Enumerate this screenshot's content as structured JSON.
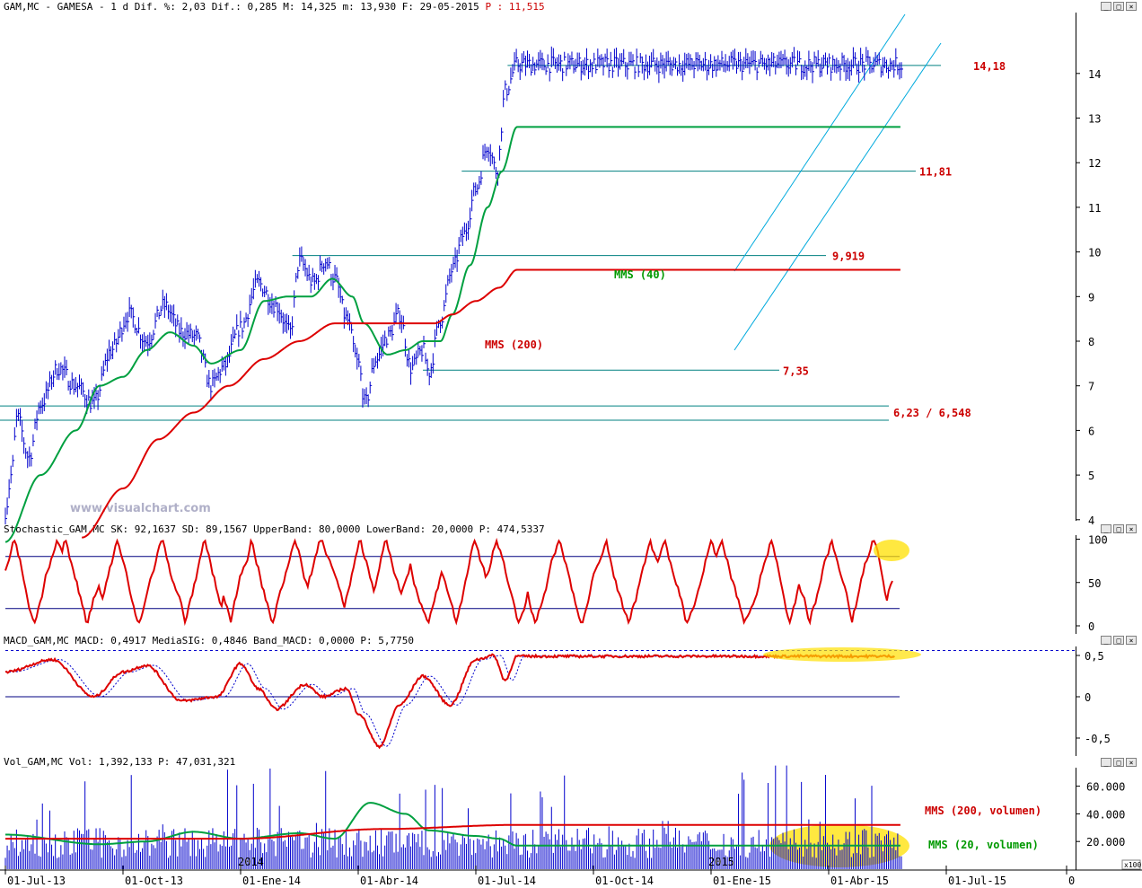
{
  "chart_data": [
    {
      "type": "line",
      "panel": "price",
      "header": "GAM,MC - GAMESA -  1 d Dif. %: 2,03 Dif.: 0,285 M: 14,325 m: 13,930 F: 29-05-2015",
      "header_p": "P : 11,515",
      "ylim": [
        3.5,
        14.8
      ],
      "yticks": [
        4,
        5,
        6,
        7,
        8,
        9,
        10,
        11,
        12,
        13,
        14
      ],
      "x_labels": [
        "01-Jul-13",
        "01-Oct-13",
        "01-Ene-14",
        "01-Abr-14",
        "01-Jul-14",
        "01-Oct-14",
        "01-Ene-15",
        "01-Abr-15",
        "01-Jul-15",
        "0"
      ],
      "year_marks": [
        "2014",
        "2015"
      ],
      "price_keypoints": [
        [
          0,
          4.2
        ],
        [
          0.05,
          5.0
        ],
        [
          0.1,
          6.3
        ],
        [
          0.2,
          5.4
        ],
        [
          0.3,
          6.6
        ],
        [
          0.45,
          7.4
        ],
        [
          0.6,
          7.0
        ],
        [
          0.75,
          6.6
        ],
        [
          0.9,
          7.8
        ],
        [
          1.05,
          8.6
        ],
        [
          1.2,
          8.0
        ],
        [
          1.35,
          8.8
        ],
        [
          1.5,
          8.2
        ],
        [
          1.62,
          8.1
        ],
        [
          1.75,
          7.0
        ],
        [
          1.85,
          7.4
        ],
        [
          2.0,
          8.3
        ],
        [
          2.15,
          9.3
        ],
        [
          2.3,
          8.8
        ],
        [
          2.42,
          8.2
        ],
        [
          2.5,
          9.8
        ],
        [
          2.62,
          9.3
        ],
        [
          2.72,
          9.8
        ],
        [
          2.8,
          9.4
        ],
        [
          2.9,
          8.5
        ],
        [
          3.0,
          7.5
        ],
        [
          3.06,
          6.6
        ],
        [
          3.15,
          7.6
        ],
        [
          3.25,
          8.1
        ],
        [
          3.35,
          8.6
        ],
        [
          3.45,
          7.4
        ],
        [
          3.55,
          7.8
        ],
        [
          3.6,
          7.3
        ],
        [
          3.7,
          8.5
        ],
        [
          3.8,
          9.6
        ],
        [
          3.9,
          10.4
        ],
        [
          4.0,
          11.4
        ],
        [
          4.1,
          12.4
        ],
        [
          4.18,
          11.8
        ],
        [
          4.25,
          13.6
        ],
        [
          4.35,
          14.2
        ]
      ],
      "mms40_keypoints": [
        [
          0,
          3.5
        ],
        [
          0.3,
          5.0
        ],
        [
          0.6,
          6.0
        ],
        [
          0.8,
          7.0
        ],
        [
          1.0,
          7.2
        ],
        [
          1.2,
          7.8
        ],
        [
          1.4,
          8.2
        ],
        [
          1.6,
          7.9
        ],
        [
          1.75,
          7.5
        ],
        [
          2.0,
          7.8
        ],
        [
          2.2,
          8.9
        ],
        [
          2.4,
          9.0
        ],
        [
          2.6,
          9.0
        ],
        [
          2.78,
          9.4
        ],
        [
          2.95,
          9.0
        ],
        [
          3.05,
          8.4
        ],
        [
          3.25,
          7.7
        ],
        [
          3.4,
          7.8
        ],
        [
          3.55,
          8.0
        ],
        [
          3.7,
          8.0
        ],
        [
          3.8,
          8.6
        ],
        [
          3.95,
          9.7
        ],
        [
          4.1,
          11.0
        ],
        [
          4.22,
          11.8
        ],
        [
          4.35,
          12.8
        ]
      ],
      "mms200_keypoints": [
        [
          0.65,
          3.6
        ],
        [
          1.0,
          4.7
        ],
        [
          1.3,
          5.8
        ],
        [
          1.6,
          6.4
        ],
        [
          1.9,
          7.0
        ],
        [
          2.2,
          7.6
        ],
        [
          2.5,
          8.0
        ],
        [
          2.8,
          8.4
        ],
        [
          3.1,
          8.4
        ],
        [
          3.4,
          8.4
        ],
        [
          3.65,
          8.4
        ],
        [
          3.8,
          8.6
        ],
        [
          4.0,
          8.9
        ],
        [
          4.2,
          9.2
        ],
        [
          4.35,
          9.6
        ]
      ],
      "trend_lines": [
        {
          "label": "14,18",
          "value": 14.18,
          "x_start": 4.27
        },
        {
          "label": "11,81",
          "value": 11.81,
          "x_start": 3.88
        },
        {
          "label": "9,919",
          "value": 9.919,
          "x_start": 2.44
        },
        {
          "label": "7,35",
          "value": 7.35,
          "x_start": 3.55
        },
        {
          "label": "6,23 / 6,548",
          "value_high": 6.548,
          "value_low": 6.23,
          "x_start": 0.2
        }
      ],
      "annotations": [
        {
          "text": "MMS (40)",
          "color": "#009900"
        },
        {
          "text": "MMS (200)",
          "color": "#cc0000"
        }
      ],
      "watermark": "www.visualchart.com",
      "colors": {
        "price": "#0000cc",
        "mms40": "#00a040",
        "mms200": "#dd0000",
        "levels": "#008080",
        "channel": "#00aadd",
        "labels": "#cc0000"
      }
    },
    {
      "type": "line",
      "panel": "stochastic",
      "header": "Stochastic_GAM,MC SK: 92,1637 SD: 89,1567 UpperBand: 80,0000 LowerBand: 20,0000 P: 474,5337",
      "ylim": [
        0,
        100
      ],
      "yticks": [
        0,
        50,
        100
      ],
      "bands": [
        80,
        20
      ],
      "colors": {
        "line": "#dd0000",
        "band": "#000080",
        "highlight": "#ffe000"
      }
    },
    {
      "type": "line",
      "panel": "macd",
      "header": "MACD_GAM,MC MACD: 0,4917 MediaSIG: 0,4846 Band_MACD: 0,0000 P: 5,7750",
      "ylim": [
        -0.65,
        0.6
      ],
      "yticks": [
        0.5,
        0,
        -0.5
      ],
      "ytick_labels": [
        "0,5",
        "0",
        "-0,5"
      ],
      "colors": {
        "line": "#dd0000",
        "signal": "#0000cc",
        "zero": "#000080",
        "highlight": "#ffe000"
      }
    },
    {
      "type": "bar",
      "panel": "volume",
      "header": "Vol_GAM,MC Vol: 1,392,133 P: 47,031,321",
      "ylim": [
        0,
        75000
      ],
      "yticks": [
        20000,
        40000,
        60000
      ],
      "ytick_labels": [
        "20.000",
        "40.000",
        "60.000"
      ],
      "scale_note": "x100",
      "annotations": [
        {
          "text": "MMS (200, volumen)",
          "color": "#cc0000"
        },
        {
          "text": "MMS (20, volumen)",
          "color": "#009900"
        }
      ],
      "colors": {
        "bars": "#0000cc",
        "mms200": "#dd0000",
        "mms20": "#00a040",
        "highlight": "#ffe000"
      }
    }
  ]
}
